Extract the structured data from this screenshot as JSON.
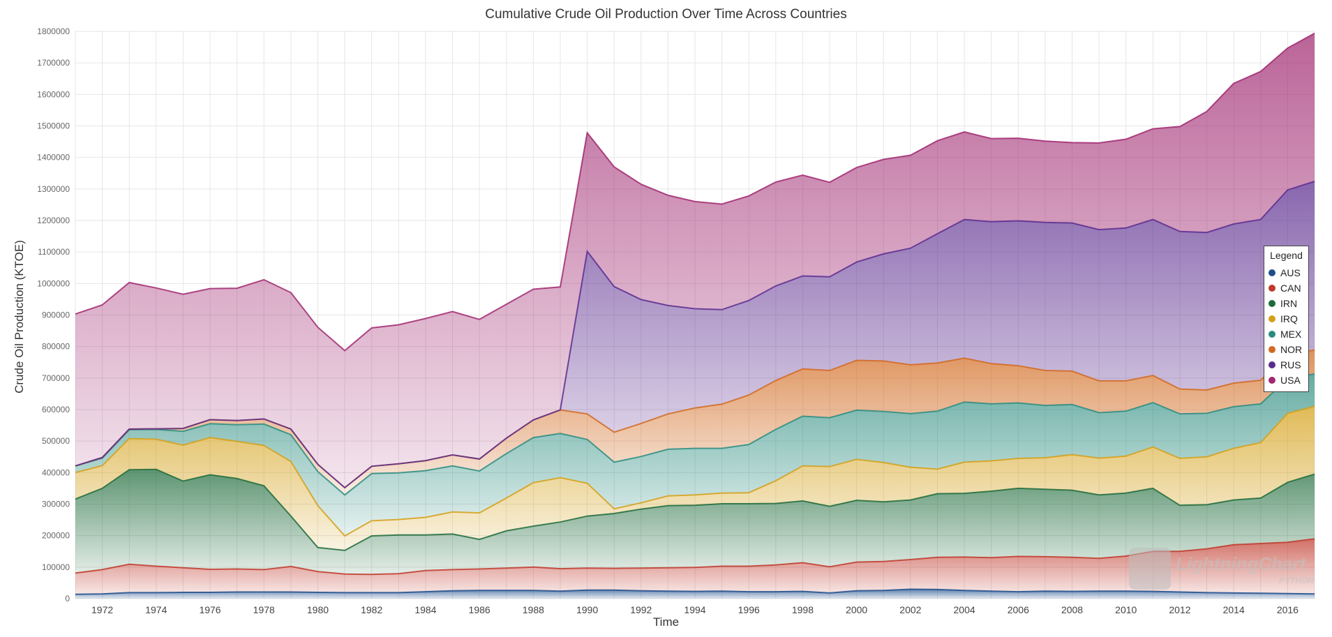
{
  "chart_data": {
    "type": "area",
    "stacked": true,
    "title": "Cumulative Crude Oil Production Over Time Across Countries",
    "xlabel": "Time",
    "ylabel": "Crude Oil Production (KTOE)",
    "x": [
      1971,
      1972,
      1973,
      1974,
      1975,
      1976,
      1977,
      1978,
      1979,
      1980,
      1981,
      1982,
      1983,
      1984,
      1985,
      1986,
      1987,
      1988,
      1989,
      1990,
      1991,
      1992,
      1993,
      1994,
      1995,
      1996,
      1997,
      1998,
      1999,
      2000,
      2001,
      2002,
      2003,
      2004,
      2005,
      2006,
      2007,
      2008,
      2009,
      2010,
      2011,
      2012,
      2013,
      2014,
      2015,
      2016,
      2017
    ],
    "xlim": [
      1971,
      2017
    ],
    "ylim": [
      0,
      1800000
    ],
    "x_ticks": [
      1972,
      1974,
      1976,
      1978,
      1980,
      1982,
      1984,
      1986,
      1988,
      1990,
      1992,
      1994,
      1996,
      1998,
      2000,
      2002,
      2004,
      2006,
      2008,
      2010,
      2012,
      2014,
      2016
    ],
    "y_ticks": [
      0,
      100000,
      200000,
      300000,
      400000,
      500000,
      600000,
      700000,
      800000,
      900000,
      1000000,
      1100000,
      1200000,
      1300000,
      1400000,
      1500000,
      1600000,
      1700000,
      1800000
    ],
    "grid": true,
    "legend_title": "Legend",
    "legend_position": "right",
    "series": [
      {
        "name": "AUS",
        "color": "#1f4e8c",
        "values": [
          14000,
          15000,
          19000,
          19000,
          20000,
          20000,
          21000,
          21000,
          21000,
          20000,
          19000,
          19000,
          19000,
          22000,
          25000,
          26000,
          26000,
          26000,
          24000,
          27000,
          27000,
          25000,
          24000,
          23000,
          24000,
          22000,
          22000,
          23000,
          18000,
          25000,
          26000,
          30000,
          29000,
          26000,
          24000,
          22000,
          24000,
          23000,
          24000,
          24000,
          23000,
          21000,
          19000,
          18000,
          17000,
          16000,
          15000
        ]
      },
      {
        "name": "CAN",
        "color": "#c0392b",
        "values": [
          67000,
          77000,
          90000,
          84000,
          78000,
          73000,
          73000,
          71000,
          81000,
          66000,
          59000,
          58000,
          60000,
          67000,
          67000,
          68000,
          71000,
          74000,
          71000,
          70000,
          69000,
          72000,
          74000,
          76000,
          79000,
          81000,
          85000,
          91000,
          83000,
          91000,
          92000,
          94000,
          102000,
          106000,
          106000,
          112000,
          109000,
          108000,
          104000,
          111000,
          127000,
          129000,
          139000,
          153000,
          158000,
          163000,
          175000
        ]
      },
      {
        "name": "IRN",
        "color": "#1e6b3a",
        "values": [
          235000,
          258000,
          300000,
          307000,
          275000,
          300000,
          287000,
          266000,
          160000,
          76000,
          75000,
          122000,
          123000,
          113000,
          113000,
          94000,
          118000,
          130000,
          148000,
          165000,
          174000,
          187000,
          197000,
          197000,
          198000,
          198000,
          195000,
          196000,
          192000,
          196000,
          189000,
          189000,
          202000,
          202000,
          211000,
          216000,
          214000,
          213000,
          201000,
          200000,
          200000,
          146000,
          140000,
          142000,
          144000,
          190000,
          205000
        ]
      },
      {
        "name": "IRQ",
        "color": "#d4a017",
        "values": [
          84000,
          72000,
          99000,
          96000,
          114000,
          118000,
          118000,
          128000,
          173000,
          133000,
          46000,
          48000,
          49000,
          56000,
          70000,
          84000,
          104000,
          138000,
          141000,
          104000,
          15000,
          20000,
          31000,
          33000,
          34000,
          35000,
          72000,
          111000,
          126000,
          130000,
          125000,
          104000,
          78000,
          99000,
          96000,
          95000,
          100000,
          113000,
          117000,
          117000,
          131000,
          149000,
          152000,
          164000,
          176000,
          219000,
          215000
        ]
      },
      {
        "name": "MEX",
        "color": "#2a8c7f",
        "values": [
          21000,
          24000,
          28000,
          31000,
          44000,
          44000,
          53000,
          68000,
          85000,
          108000,
          130000,
          150000,
          148000,
          148000,
          146000,
          133000,
          141000,
          143000,
          140000,
          139000,
          148000,
          147000,
          148000,
          148000,
          142000,
          153000,
          163000,
          158000,
          155000,
          156000,
          162000,
          170000,
          184000,
          191000,
          181000,
          176000,
          166000,
          159000,
          144000,
          143000,
          141000,
          141000,
          138000,
          132000,
          123000,
          110000,
          103000
        ]
      },
      {
        "name": "NOR",
        "color": "#d2691e",
        "values": [
          0,
          2000,
          2000,
          2000,
          9000,
          13000,
          13000,
          16000,
          18000,
          23000,
          23000,
          23000,
          29000,
          32000,
          35000,
          38000,
          49000,
          56000,
          75000,
          81000,
          95000,
          105000,
          112000,
          128000,
          140000,
          157000,
          155000,
          150000,
          150000,
          158000,
          160000,
          155000,
          153000,
          139000,
          128000,
          118000,
          111000,
          106000,
          101000,
          96000,
          86000,
          79000,
          74000,
          75000,
          75000,
          77000,
          76000
        ]
      },
      {
        "name": "RUS",
        "color": "#5b2c8f",
        "values": [
          0,
          0,
          0,
          0,
          0,
          0,
          0,
          0,
          0,
          0,
          0,
          0,
          0,
          0,
          0,
          0,
          0,
          0,
          0,
          516000,
          462000,
          393000,
          344000,
          315000,
          300000,
          300000,
          300000,
          295000,
          297000,
          312000,
          340000,
          370000,
          410000,
          440000,
          450000,
          460000,
          470000,
          470000,
          480000,
          485000,
          495000,
          500000,
          500000,
          505000,
          510000,
          522000,
          535000
        ]
      },
      {
        "name": "USA",
        "color": "#a02870",
        "values": [
          482000,
          484000,
          465000,
          447000,
          426000,
          416000,
          420000,
          442000,
          433000,
          435000,
          435000,
          439000,
          441000,
          451000,
          455000,
          443000,
          425000,
          415000,
          390000,
          376000,
          380000,
          366000,
          350000,
          340000,
          335000,
          332000,
          330000,
          320000,
          300000,
          300000,
          300000,
          295000,
          295000,
          278000,
          264000,
          262000,
          258000,
          255000,
          275000,
          282000,
          288000,
          333000,
          384000,
          446000,
          470000,
          450000,
          470000
        ]
      }
    ]
  },
  "watermark": {
    "brand": "LightningChart",
    "sub": "PYTHON"
  }
}
